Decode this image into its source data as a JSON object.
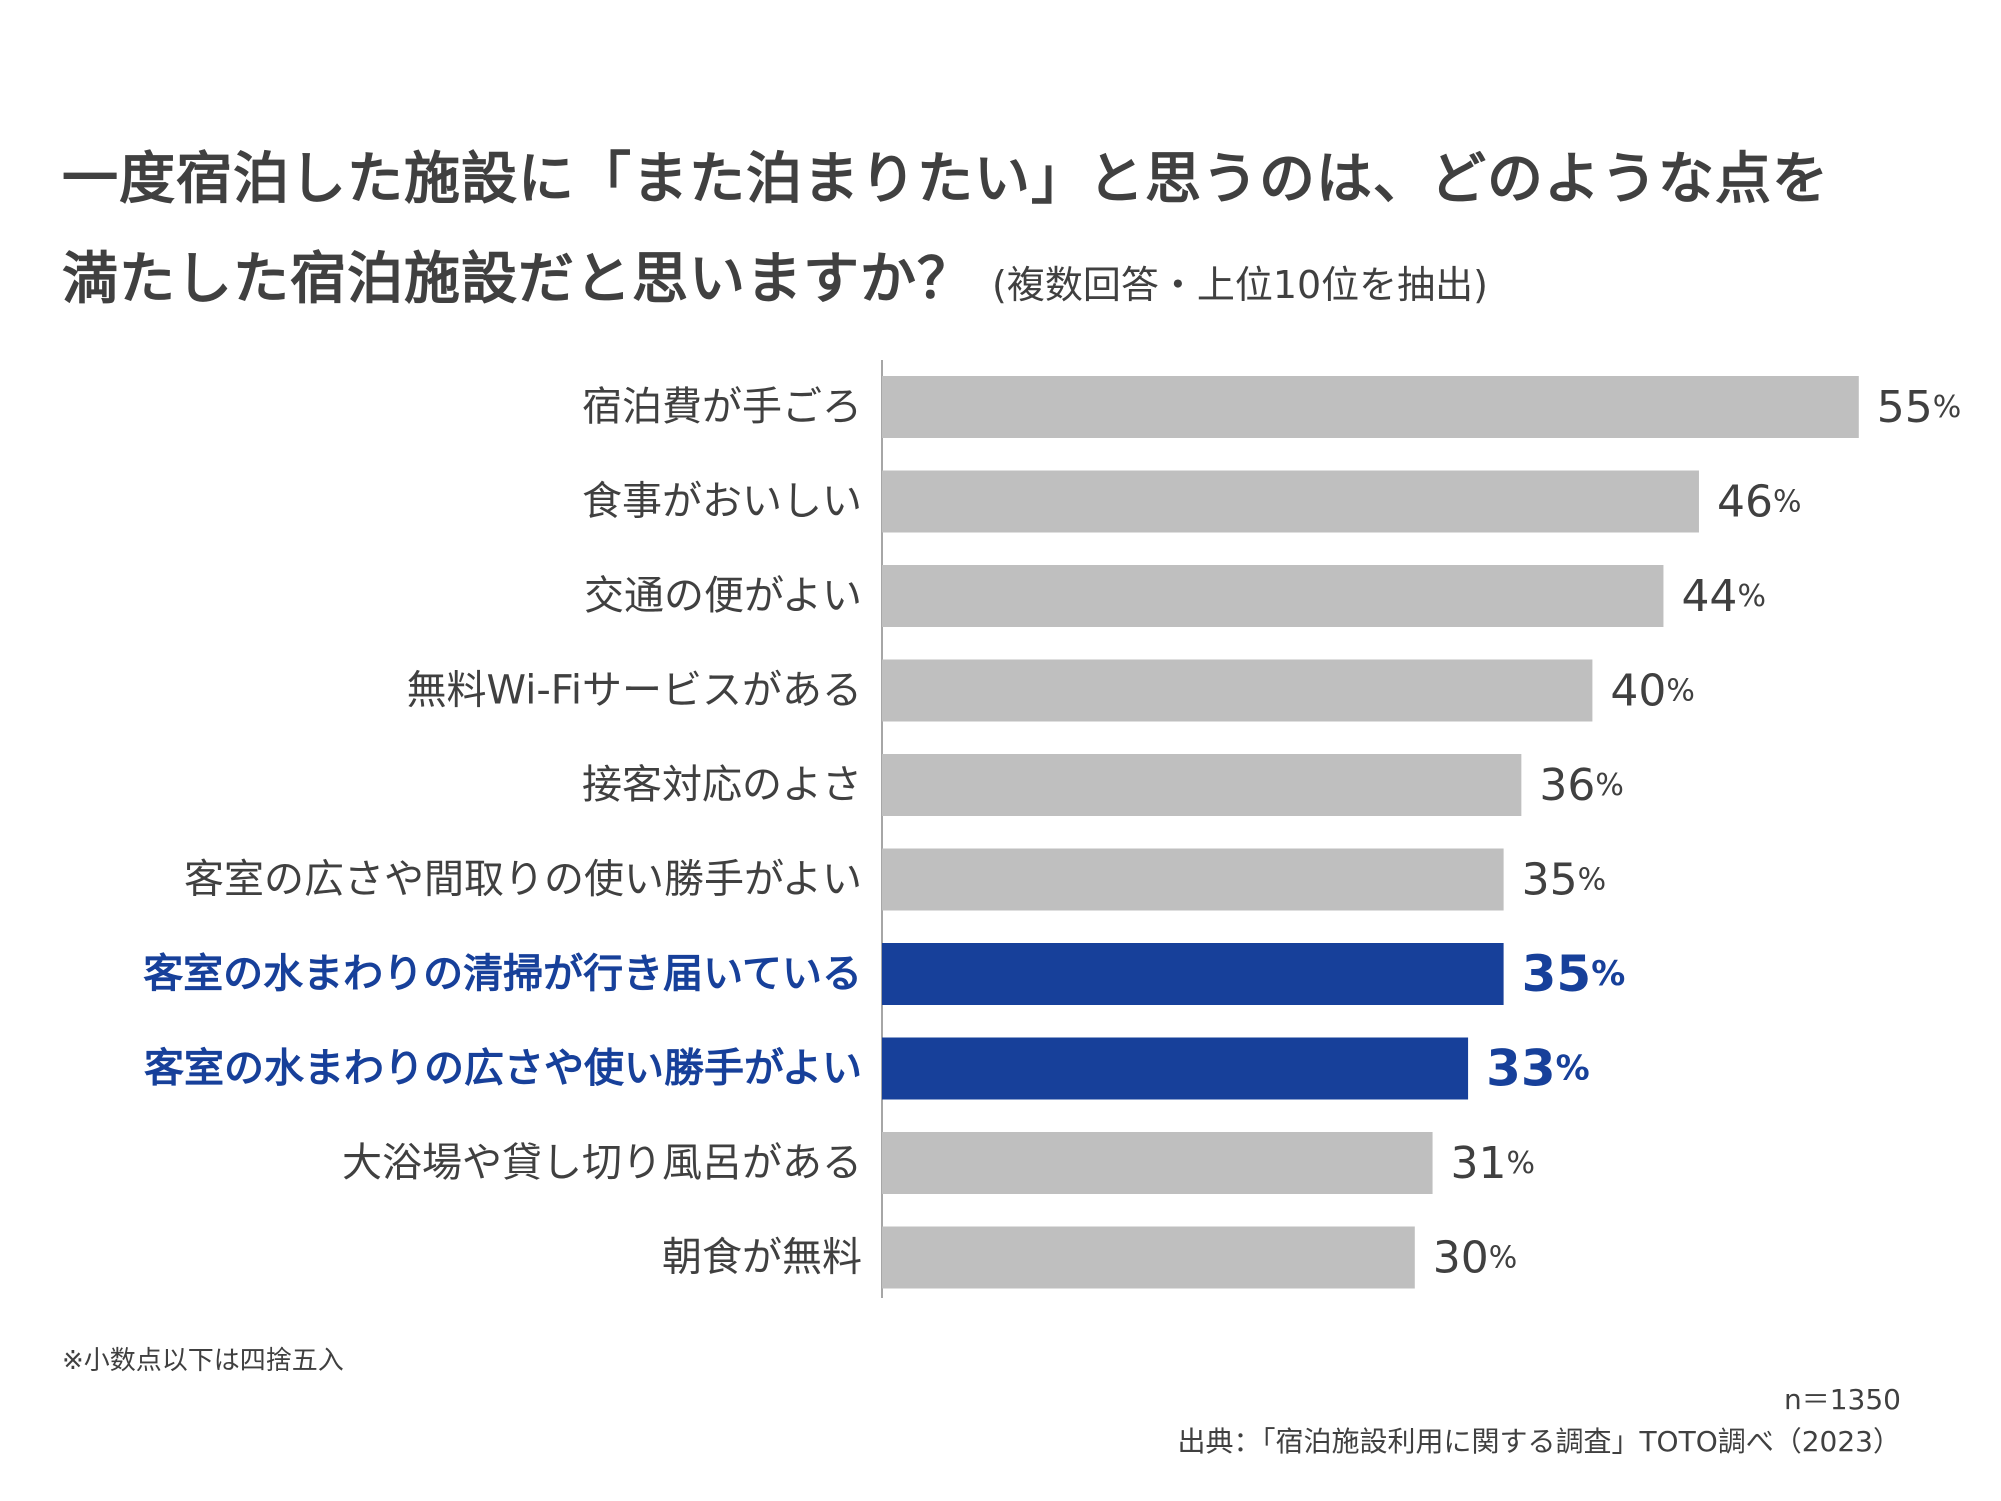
{
  "title_line1": "一度宿泊した施設に「また泊まりたい」と思うのは、どのような点を",
  "title_line2": "満たした宿泊施設だと思いますか？",
  "subtitle": "(複数回答・上位10位を抽出)",
  "footnote": "※小数点以下は四捨五入",
  "sample_size": "n＝1350",
  "source": "出典：「宿泊施設利用に関する調査」TOTO調べ（2023）",
  "unit": "%",
  "colors": {
    "default_bar": "#bfbfbf",
    "highlight_bar": "#17409a",
    "axis": "#a6a6a6"
  },
  "chart_data": {
    "type": "bar",
    "orientation": "horizontal",
    "categories": [
      "宿泊費が手ごろ",
      "食事がおいしい",
      "交通の便がよい",
      "無料Wi-Fiサービスがある",
      "接客対応のよさ",
      "客室の広さや間取りの使い勝手がよい",
      "客室の水まわりの清掃が行き届いている",
      "客室の水まわりの広さや使い勝手がよい",
      "大浴場や貸し切り風呂がある",
      "朝食が無料"
    ],
    "values": [
      55,
      46,
      44,
      40,
      36,
      35,
      35,
      33,
      31,
      30
    ],
    "highlighted": [
      false,
      false,
      false,
      false,
      false,
      false,
      true,
      true,
      false,
      false
    ],
    "grid": false,
    "legend": "none"
  }
}
